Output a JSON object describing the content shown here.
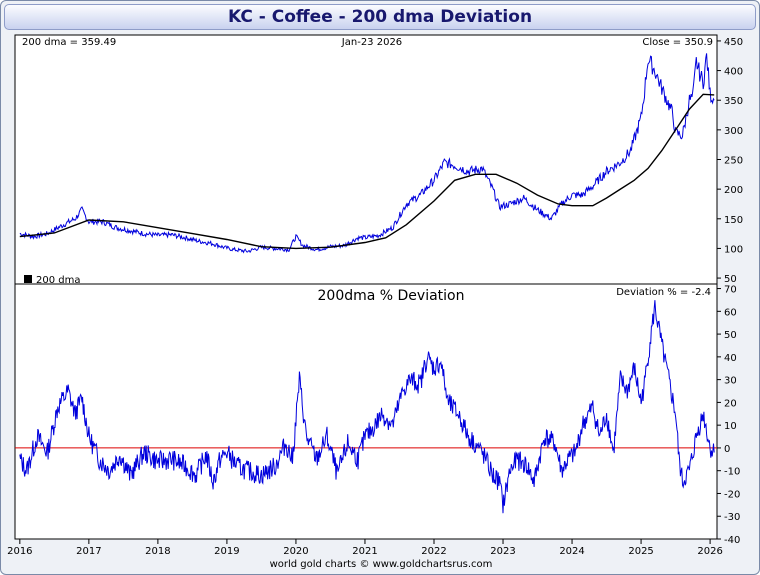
{
  "title": "KC  -  Coffee - 200 dma Deviation",
  "footer": "world gold charts © www.goldchartsrus.com",
  "chart_data": [
    {
      "type": "line",
      "header_left": "200 dma = 359.49",
      "header_center": "Jan-23  2026",
      "header_right": "Close = 350.9",
      "legend": "200 dma",
      "ylim": [
        40,
        460
      ],
      "yticks": [
        50,
        100,
        150,
        200,
        250,
        300,
        350,
        400,
        450
      ],
      "colors": {
        "price": "#0000dd",
        "dma": "#000000"
      },
      "series": [
        {
          "name": "Close",
          "x": [
            2016.0,
            2016.2,
            2016.4,
            2016.6,
            2016.8,
            2016.9,
            2017.0,
            2017.2,
            2017.4,
            2017.6,
            2017.8,
            2018.0,
            2018.2,
            2018.4,
            2018.6,
            2018.8,
            2018.95,
            2019.1,
            2019.3,
            2019.5,
            2019.7,
            2019.9,
            2020.0,
            2020.1,
            2020.3,
            2020.5,
            2020.7,
            2020.9,
            2021.0,
            2021.2,
            2021.4,
            2021.6,
            2021.8,
            2022.0,
            2022.15,
            2022.3,
            2022.5,
            2022.7,
            2022.85,
            2022.95,
            2023.1,
            2023.3,
            2023.5,
            2023.7,
            2023.85,
            2024.0,
            2024.15,
            2024.3,
            2024.5,
            2024.7,
            2024.85,
            2025.0,
            2025.05,
            2025.1,
            2025.2,
            2025.3,
            2025.45,
            2025.5,
            2025.6,
            2025.7,
            2025.75,
            2025.8,
            2025.85,
            2025.9,
            2025.95,
            2026.0,
            2026.06
          ],
          "y": [
            125,
            120,
            125,
            138,
            150,
            165,
            145,
            145,
            135,
            130,
            125,
            122,
            123,
            118,
            112,
            108,
            102,
            98,
            95,
            102,
            100,
            98,
            120,
            105,
            98,
            103,
            105,
            118,
            118,
            122,
            135,
            175,
            190,
            215,
            245,
            240,
            230,
            235,
            200,
            170,
            175,
            185,
            165,
            150,
            175,
            190,
            190,
            205,
            230,
            245,
            265,
            320,
            365,
            420,
            400,
            370,
            330,
            295,
            290,
            350,
            355,
            415,
            395,
            380,
            425,
            360,
            350
          ]
        },
        {
          "name": "200 dma",
          "x": [
            2016.0,
            2016.5,
            2017.0,
            2017.5,
            2018.0,
            2018.5,
            2019.0,
            2019.5,
            2020.0,
            2020.5,
            2021.0,
            2021.3,
            2021.6,
            2022.0,
            2022.3,
            2022.6,
            2022.9,
            2023.2,
            2023.5,
            2023.8,
            2024.0,
            2024.3,
            2024.5,
            2024.7,
            2024.9,
            2025.1,
            2025.3,
            2025.5,
            2025.7,
            2025.9,
            2026.06
          ],
          "y": [
            120,
            126,
            148,
            145,
            135,
            125,
            115,
            103,
            100,
            102,
            110,
            118,
            140,
            180,
            215,
            225,
            225,
            210,
            190,
            175,
            172,
            172,
            185,
            200,
            215,
            235,
            265,
            300,
            335,
            360,
            359
          ]
        }
      ]
    },
    {
      "type": "line",
      "title": "200dma  %  Deviation",
      "header_right": "Deviation % = -2.4",
      "ylim": [
        -40,
        72
      ],
      "yticks": [
        -40,
        -30,
        -20,
        -10,
        0,
        10,
        20,
        30,
        40,
        50,
        60,
        70
      ],
      "xticks": [
        "2016",
        "2017",
        "2018",
        "2019",
        "2020",
        "2021",
        "2022",
        "2023",
        "2024",
        "2025",
        "2026"
      ],
      "colors": {
        "deviation": "#0000dd",
        "zero": "#dd0000"
      },
      "series": [
        {
          "name": "Deviation %",
          "x": [
            2016.0,
            2016.1,
            2016.25,
            2016.4,
            2016.55,
            2016.7,
            2016.8,
            2016.9,
            2017.0,
            2017.15,
            2017.3,
            2017.45,
            2017.6,
            2017.8,
            2018.0,
            2018.2,
            2018.4,
            2018.55,
            2018.7,
            2018.8,
            2018.9,
            2019.0,
            2019.15,
            2019.3,
            2019.5,
            2019.7,
            2019.85,
            2019.95,
            2020.05,
            2020.15,
            2020.3,
            2020.45,
            2020.6,
            2020.75,
            2020.9,
            2021.0,
            2021.1,
            2021.25,
            2021.4,
            2021.55,
            2021.65,
            2021.8,
            2021.9,
            2022.0,
            2022.1,
            2022.2,
            2022.35,
            2022.5,
            2022.65,
            2022.75,
            2022.85,
            2022.95,
            2023.0,
            2023.1,
            2023.2,
            2023.35,
            2023.45,
            2023.6,
            2023.75,
            2023.85,
            2023.95,
            2024.05,
            2024.15,
            2024.3,
            2024.4,
            2024.5,
            2024.6,
            2024.7,
            2024.8,
            2024.9,
            2025.0,
            2025.05,
            2025.1,
            2025.2,
            2025.3,
            2025.4,
            2025.5,
            2025.55,
            2025.6,
            2025.7,
            2025.8,
            2025.9,
            2025.95,
            2026.0,
            2026.06
          ],
          "y": [
            -5,
            -10,
            5,
            -2,
            18,
            25,
            15,
            22,
            5,
            -5,
            -10,
            -3,
            -12,
            -2,
            -6,
            -5,
            -8,
            -12,
            -3,
            -15,
            -5,
            -2,
            -8,
            -10,
            -12,
            -8,
            2,
            -5,
            30,
            5,
            -5,
            5,
            -12,
            2,
            -5,
            5,
            8,
            15,
            10,
            25,
            30,
            28,
            40,
            35,
            38,
            20,
            15,
            5,
            0,
            -5,
            -12,
            -15,
            -25,
            -10,
            -5,
            -8,
            -15,
            5,
            2,
            -10,
            -5,
            -2,
            10,
            18,
            5,
            15,
            -2,
            30,
            25,
            35,
            20,
            28,
            40,
            62,
            45,
            30,
            15,
            -5,
            -15,
            -10,
            5,
            15,
            8,
            0,
            -2
          ]
        }
      ]
    }
  ]
}
